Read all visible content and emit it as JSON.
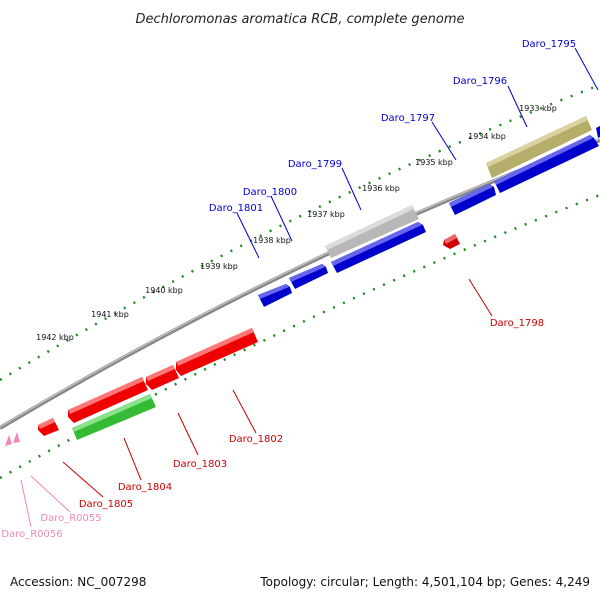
{
  "title": "Dechloromonas aromatica RCB, complete genome",
  "footer": {
    "accession": "Accession: NC_007298",
    "stats": "Topology: circular; Length: 4,501,104 bp; Genes: 4,249"
  },
  "ticks": [
    "1933 kbp",
    "1934 kbp",
    "1935 kbp",
    "1936 kbp",
    "1937 kbp",
    "1938 kbp",
    "1939 kbp",
    "1940 kbp",
    "1941 kbp",
    "1942 kbp"
  ],
  "labels": {
    "daro_1795": "Daro_1795",
    "daro_1796": "Daro_1796",
    "daro_1797": "Daro_1797",
    "daro_1798": "Daro_1798",
    "daro_1799": "Daro_1799",
    "daro_1800": "Daro_1800",
    "daro_1801": "Daro_1801",
    "daro_1802": "Daro_1802",
    "daro_1803": "Daro_1803",
    "daro_1804": "Daro_1804",
    "daro_1805": "Daro_1805",
    "daro_r0055": "Daro_R0055",
    "daro_r0056": "Daro_R0056"
  },
  "colors": {
    "forward_strand": "#0000cc",
    "reverse_strand": "#cc0000",
    "rna": "#ee88bb",
    "highlight_olive": "#b5ad6a",
    "highlight_gray": "#b8b8b8",
    "highlight_green": "#33bb33",
    "backbone": "#888888",
    "tick_green": "#228822"
  }
}
